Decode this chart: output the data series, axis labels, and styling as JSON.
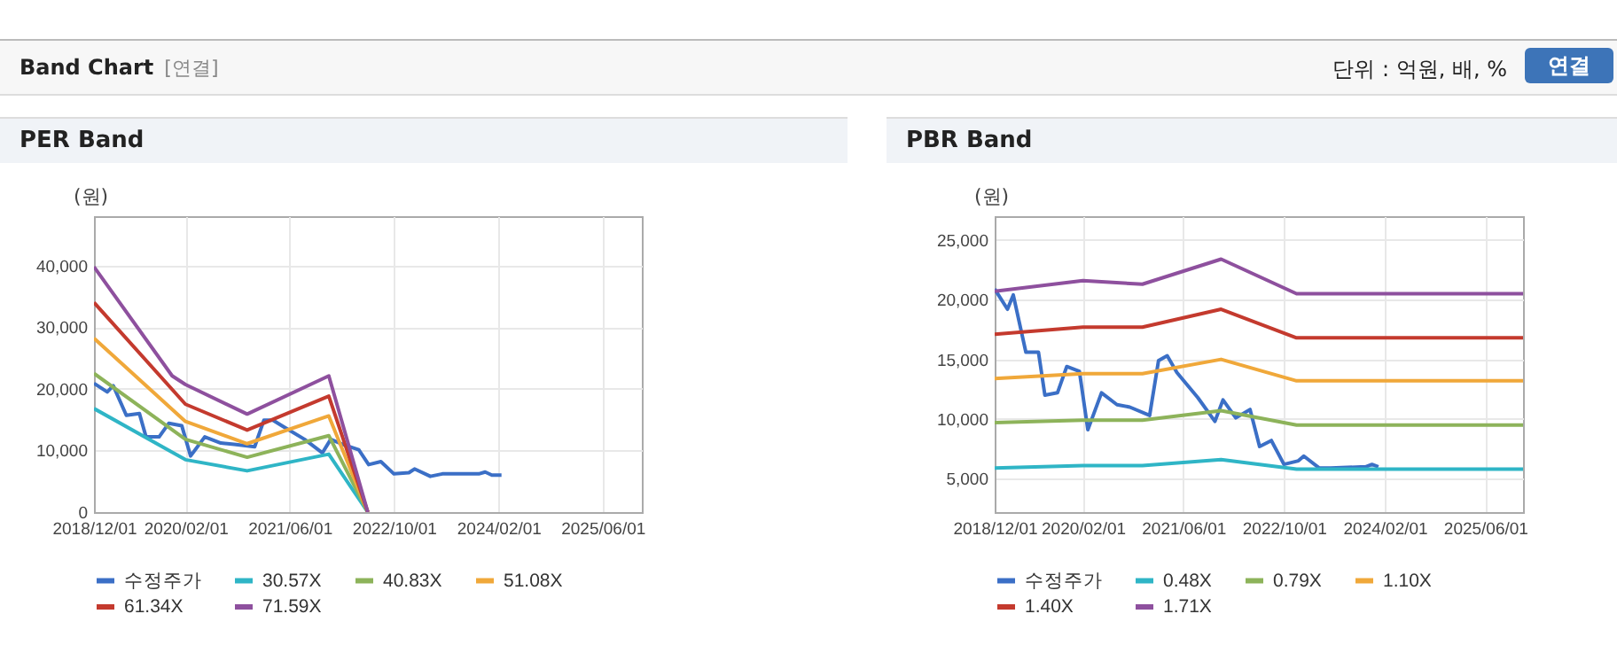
{
  "chart_data": [
    {
      "type": "line",
      "title": "PER Band",
      "ylabel": "(원)",
      "annotations": [
        "Band Chart",
        "[연결]",
        "단위 : 억원, 배, %",
        "연결"
      ],
      "xlim": [
        "2018-12-01",
        "2025-12-01"
      ],
      "xticks": [
        {
          "value": "2018-12-01",
          "label": "2018/12/01"
        },
        {
          "value": "2020-02-01",
          "label": "2020/02/01"
        },
        {
          "value": "2021-06-01",
          "label": "2021/06/01"
        },
        {
          "value": "2022-10-01",
          "label": "2022/10/01"
        },
        {
          "value": "2024-02-01",
          "label": "2024/02/01"
        },
        {
          "value": "2025-06-01",
          "label": "2025/06/01"
        }
      ],
      "ylim": [
        0,
        48000
      ],
      "yticks": [
        0,
        {
          "value": 10000,
          "label": "10,000"
        },
        {
          "value": 20000,
          "label": "20,000"
        },
        {
          "value": 30000,
          "label": "30,000"
        },
        {
          "value": 40000,
          "label": "40,000"
        }
      ],
      "grid": true,
      "legend": "bottom",
      "series": [
        {
          "name": "수정주가",
          "color": "#3b6fc6",
          "x": [
            "2018-12-01",
            "2019-02-01",
            "2019-03-01",
            "2019-05-01",
            "2019-07-01",
            "2019-08-01",
            "2019-10-01",
            "2019-11-15",
            "2020-01-15",
            "2020-02-25",
            "2020-05-01",
            "2020-07-15",
            "2020-09-15",
            "2020-12-20",
            "2021-02-01",
            "2021-03-15",
            "2021-05-01",
            "2021-08-10",
            "2021-11-01",
            "2021-12-10",
            "2022-02-10",
            "2022-04-20",
            "2022-06-05",
            "2022-08-01",
            "2022-10-01",
            "2022-12-10",
            "2023-01-05",
            "2023-03-20",
            "2023-05-15",
            "2023-11-01",
            "2023-12-01",
            "2024-01-01",
            "2024-02-15"
          ],
          "values": [
            20900,
            19500,
            20500,
            15700,
            16000,
            12200,
            12200,
            14400,
            14000,
            9100,
            12200,
            11200,
            11000,
            10600,
            14900,
            14900,
            13900,
            11800,
            9600,
            11800,
            10900,
            10100,
            7700,
            8200,
            6200,
            6400,
            7000,
            5800,
            6200,
            6200,
            6500,
            6000,
            6000
          ]
        },
        {
          "name": "30.57X",
          "color": "#2fb5c6",
          "x": [
            "2018-12-01",
            "2020-02-01",
            "2020-11-15",
            "2021-12-01",
            "2022-06-01"
          ],
          "values": [
            16800,
            8500,
            6700,
            9400,
            0
          ]
        },
        {
          "name": "40.83X",
          "color": "#8db35a",
          "x": [
            "2018-12-01",
            "2020-02-01",
            "2020-11-15",
            "2021-12-01",
            "2022-06-01"
          ],
          "values": [
            22500,
            11800,
            8900,
            12400,
            0
          ]
        },
        {
          "name": "51.08X",
          "color": "#f0a83a",
          "x": [
            "2018-12-01",
            "2020-02-01",
            "2020-11-15",
            "2021-12-01",
            "2022-06-01"
          ],
          "values": [
            28200,
            14700,
            11100,
            15600,
            0
          ]
        },
        {
          "name": "61.34X",
          "color": "#c43a2e",
          "x": [
            "2018-12-01",
            "2020-02-01",
            "2020-11-15",
            "2021-12-01",
            "2022-06-01"
          ],
          "values": [
            34000,
            17500,
            13300,
            18800,
            0
          ]
        },
        {
          "name": "71.59X",
          "color": "#8e509e",
          "x": [
            "2018-12-01",
            "2019-12-01",
            "2020-02-01",
            "2020-11-15",
            "2021-12-01",
            "2022-06-01"
          ],
          "values": [
            39800,
            22100,
            20700,
            15900,
            22100,
            0
          ]
        }
      ]
    },
    {
      "type": "line",
      "title": "PBR Band",
      "ylabel": "(원)",
      "xlim": [
        "2018-12-01",
        "2025-12-01"
      ],
      "xticks": [
        {
          "value": "2018-12-01",
          "label": "2018/12/01"
        },
        {
          "value": "2020-02-01",
          "label": "2020/02/01"
        },
        {
          "value": "2021-06-01",
          "label": "2021/06/01"
        },
        {
          "value": "2022-10-01",
          "label": "2022/10/01"
        },
        {
          "value": "2024-02-01",
          "label": "2024/02/01"
        },
        {
          "value": "2025-06-01",
          "label": "2025/06/01"
        }
      ],
      "ylim": [
        2200,
        27000
      ],
      "yticks": [
        {
          "value": 5000,
          "label": "5,000"
        },
        {
          "value": 10000,
          "label": "10,000"
        },
        {
          "value": 15000,
          "label": "15,000"
        },
        {
          "value": 20000,
          "label": "20,000"
        },
        {
          "value": 25000,
          "label": "25,000"
        }
      ],
      "grid": true,
      "legend": "bottom",
      "series": [
        {
          "name": "수정주가",
          "color": "#3b6fc6",
          "x": [
            "2018-12-01",
            "2019-02-01",
            "2019-03-01",
            "2019-05-01",
            "2019-07-01",
            "2019-08-01",
            "2019-10-01",
            "2019-11-15",
            "2020-01-15",
            "2020-02-25",
            "2020-05-01",
            "2020-07-15",
            "2020-09-15",
            "2020-12-20",
            "2021-02-01",
            "2021-03-15",
            "2021-05-01",
            "2021-08-10",
            "2021-11-01",
            "2021-12-10",
            "2022-02-10",
            "2022-04-20",
            "2022-06-05",
            "2022-08-01",
            "2022-10-01",
            "2022-12-10",
            "2023-01-05",
            "2023-03-20",
            "2023-05-15",
            "2023-11-01",
            "2023-12-01",
            "2024-01-01"
          ],
          "values": [
            20900,
            19200,
            20400,
            15600,
            15600,
            12000,
            12200,
            14400,
            14000,
            9100,
            12200,
            11200,
            11000,
            10300,
            14900,
            15300,
            13900,
            11800,
            9800,
            11600,
            10100,
            10800,
            7700,
            8200,
            6200,
            6500,
            6900,
            5900,
            5900,
            6000,
            6200,
            6000
          ]
        },
        {
          "name": "0.48X",
          "color": "#2fb5c6",
          "x": [
            "2018-12-01",
            "2020-02-01",
            "2020-11-15",
            "2021-12-01",
            "2022-12-01",
            "2025-12-01"
          ],
          "values": [
            5900,
            6100,
            6100,
            6600,
            5800,
            5800
          ]
        },
        {
          "name": "0.79X",
          "color": "#8db35a",
          "x": [
            "2018-12-01",
            "2020-02-01",
            "2020-11-15",
            "2021-12-01",
            "2022-12-01",
            "2025-12-01"
          ],
          "values": [
            9700,
            9900,
            9900,
            10700,
            9500,
            9500
          ]
        },
        {
          "name": "1.10X",
          "color": "#f0a83a",
          "x": [
            "2018-12-01",
            "2020-02-01",
            "2020-11-15",
            "2021-12-01",
            "2022-12-01",
            "2025-12-01"
          ],
          "values": [
            13400,
            13800,
            13800,
            15000,
            13200,
            13200
          ]
        },
        {
          "name": "1.40X",
          "color": "#c43a2e",
          "x": [
            "2018-12-01",
            "2020-02-01",
            "2020-11-15",
            "2021-12-01",
            "2022-12-01",
            "2025-12-01"
          ],
          "values": [
            17100,
            17700,
            17700,
            19200,
            16800,
            16800
          ]
        },
        {
          "name": "1.71X",
          "color": "#8e509e",
          "x": [
            "2018-12-01",
            "2020-02-01",
            "2020-11-15",
            "2021-12-01",
            "2022-12-01",
            "2025-12-01"
          ],
          "values": [
            20700,
            21600,
            21300,
            23400,
            20500,
            20500
          ]
        }
      ]
    }
  ]
}
